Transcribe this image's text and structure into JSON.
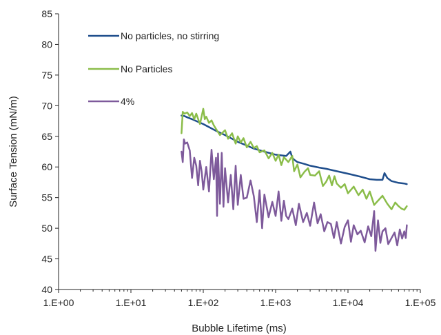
{
  "chart_data": {
    "type": "line",
    "title": "",
    "xlabel": "Bubble Lifetime (ms)",
    "ylabel": "Surface Tension (mN/m)",
    "xscale": "log",
    "xlim": [
      1,
      100000
    ],
    "ylim": [
      40,
      85
    ],
    "xticks": [
      1,
      10,
      100,
      1000,
      10000,
      100000
    ],
    "xtick_labels": [
      "1.E+00",
      "1.E+01",
      "1.E+02",
      "1.E+03",
      "1.E+04",
      "1.E+05"
    ],
    "yticks": [
      40,
      45,
      50,
      55,
      60,
      65,
      70,
      75,
      80,
      85
    ],
    "ytick_labels": [
      "40",
      "45",
      "50",
      "55",
      "60",
      "65",
      "70",
      "75",
      "80",
      "85"
    ],
    "grid": false,
    "legend": "top-left",
    "series": [
      {
        "name": "No particles, no stirring",
        "color": "#1f4e8c",
        "x": [
          50,
          55,
          60,
          70,
          80,
          100,
          120,
          150,
          200,
          250,
          300,
          400,
          500,
          700,
          1000,
          1400,
          1600,
          1700,
          1800,
          2000,
          2500,
          3000,
          4000,
          5000,
          7000,
          10000,
          15000,
          20000,
          25000,
          30000,
          32000,
          35000,
          40000,
          50000,
          60000,
          65000
        ],
        "y": [
          68.4,
          68.3,
          68.1,
          67.8,
          67.5,
          67.0,
          66.5,
          65.9,
          65.2,
          64.6,
          64.1,
          63.5,
          63.0,
          62.5,
          62.0,
          61.8,
          62.5,
          61.5,
          61.2,
          60.8,
          60.5,
          60.2,
          59.9,
          59.7,
          59.3,
          58.9,
          58.4,
          58.0,
          57.9,
          57.9,
          59.0,
          58.2,
          57.7,
          57.4,
          57.3,
          57.2
        ]
      },
      {
        "name": "No Particles",
        "color": "#8bbd4a",
        "x": [
          50,
          52,
          55,
          60,
          65,
          70,
          75,
          80,
          90,
          100,
          105,
          110,
          120,
          130,
          140,
          150,
          170,
          200,
          220,
          250,
          280,
          300,
          330,
          360,
          400,
          450,
          500,
          550,
          600,
          700,
          800,
          900,
          1000,
          1100,
          1200,
          1300,
          1500,
          1700,
          1800,
          2000,
          2200,
          2500,
          2800,
          3000,
          3500,
          4000,
          4500,
          5000,
          5500,
          6000,
          6500,
          7000,
          8000,
          9000,
          10000,
          12000,
          14000,
          16000,
          18000,
          20000,
          23000,
          26000,
          30000,
          35000,
          40000,
          45000,
          50000,
          55000,
          60000,
          65000
        ],
        "y": [
          65.5,
          69.0,
          68.7,
          68.9,
          68.3,
          68.8,
          67.8,
          68.7,
          67.0,
          69.5,
          67.8,
          68.2,
          67.2,
          67.6,
          66.8,
          66.2,
          65.2,
          66.0,
          64.6,
          65.5,
          63.8,
          65.0,
          64.0,
          64.7,
          63.2,
          64.1,
          63.1,
          63.4,
          62.4,
          62.7,
          61.4,
          62.3,
          61.0,
          62.0,
          60.3,
          61.6,
          60.8,
          61.8,
          59.3,
          60.4,
          58.3,
          59.2,
          59.8,
          58.7,
          58.6,
          59.3,
          56.9,
          57.6,
          58.6,
          57.0,
          58.5,
          57.3,
          56.6,
          57.2,
          55.7,
          56.8,
          55.4,
          56.3,
          54.8,
          56.0,
          53.8,
          54.5,
          55.3,
          54.0,
          53.1,
          54.2,
          53.6,
          53.2,
          53.0,
          53.6
        ]
      },
      {
        "name": "4%",
        "color": "#7e5a9b",
        "x": [
          50,
          52,
          54,
          56,
          60,
          65,
          70,
          75,
          80,
          85,
          90,
          95,
          100,
          110,
          120,
          130,
          140,
          150,
          155,
          160,
          170,
          180,
          190,
          200,
          220,
          240,
          260,
          280,
          300,
          330,
          360,
          400,
          450,
          500,
          550,
          600,
          650,
          700,
          800,
          900,
          1000,
          1100,
          1200,
          1300,
          1400,
          1500,
          1700,
          1900,
          2100,
          2400,
          2700,
          3000,
          3400,
          3800,
          4200,
          4700,
          5200,
          5800,
          6400,
          7000,
          8000,
          9000,
          10000,
          11000,
          12000,
          13500,
          15000,
          17000,
          19000,
          21000,
          23000,
          24000,
          26000,
          28000,
          30000,
          33000,
          36000,
          40000,
          44000,
          48000,
          52000,
          56000,
          60000,
          63000,
          65000
        ],
        "y": [
          62.5,
          60.8,
          64.5,
          63.8,
          64.0,
          62.7,
          58.2,
          61.5,
          60.2,
          57.0,
          61.0,
          59.2,
          56.3,
          60.0,
          56.0,
          62.8,
          58.0,
          61.5,
          52.0,
          62.2,
          54.0,
          62.3,
          53.5,
          59.8,
          54.2,
          58.7,
          53.1,
          60.2,
          53.8,
          58.7,
          54.8,
          55.0,
          57.8,
          55.2,
          51.0,
          56.2,
          50.0,
          55.5,
          51.8,
          54.3,
          52.0,
          56.0,
          51.2,
          54.5,
          52.0,
          51.5,
          53.2,
          50.5,
          54.0,
          51.0,
          52.5,
          50.4,
          54.2,
          50.8,
          52.3,
          49.5,
          51.0,
          50.7,
          48.4,
          51.0,
          47.5,
          50.2,
          51.3,
          47.8,
          50.5,
          49.0,
          49.6,
          47.7,
          50.3,
          48.7,
          52.8,
          46.3,
          51.3,
          47.6,
          49.5,
          50.0,
          47.4,
          48.4,
          49.3,
          47.2,
          49.8,
          48.3,
          49.5,
          48.4,
          50.5
        ]
      }
    ]
  }
}
